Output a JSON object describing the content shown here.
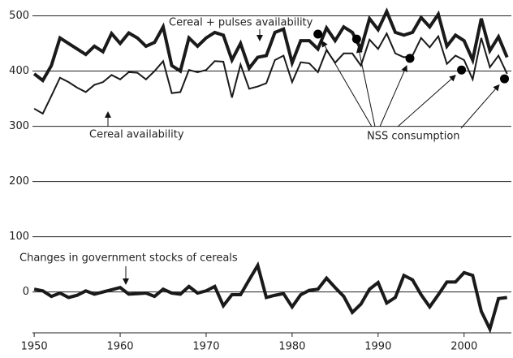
{
  "chart_data": {
    "type": "line",
    "x": [
      1950,
      1951,
      1952,
      1953,
      1954,
      1955,
      1956,
      1957,
      1958,
      1959,
      1960,
      1961,
      1962,
      1963,
      1964,
      1965,
      1966,
      1967,
      1968,
      1969,
      1970,
      1971,
      1972,
      1973,
      1974,
      1975,
      1976,
      1977,
      1978,
      1979,
      1980,
      1981,
      1982,
      1983,
      1984,
      1985,
      1986,
      1987,
      1988,
      1989,
      1990,
      1991,
      1992,
      1993,
      1994,
      1995,
      1996,
      1997,
      1998,
      1999,
      2000,
      2001,
      2002,
      2003,
      2004,
      2005
    ],
    "series": [
      {
        "name": "Cereal + pulses availability",
        "color": "#1a1a1a",
        "line_width": 4,
        "values": [
          395,
          383,
          410,
          460,
          450,
          440,
          430,
          445,
          435,
          468,
          450,
          469,
          460,
          445,
          452,
          480,
          410,
          400,
          460,
          445,
          460,
          470,
          465,
          420,
          450,
          405,
          425,
          428,
          470,
          476,
          415,
          455,
          455,
          440,
          478,
          455,
          480,
          470,
          440,
          495,
          475,
          508,
          470,
          465,
          470,
          497,
          480,
          503,
          445,
          465,
          455,
          420,
          495,
          437,
          462,
          425
        ]
      },
      {
        "name": "Cereal availability",
        "color": "#1a1a1a",
        "line_width": 2,
        "values": [
          332,
          323,
          355,
          388,
          380,
          370,
          362,
          375,
          380,
          393,
          385,
          398,
          397,
          385,
          400,
          418,
          360,
          362,
          402,
          398,
          402,
          418,
          417,
          352,
          412,
          368,
          372,
          378,
          420,
          428,
          380,
          416,
          414,
          398,
          438,
          415,
          432,
          432,
          410,
          457,
          440,
          468,
          432,
          425,
          428,
          460,
          443,
          463,
          413,
          428,
          420,
          385,
          460,
          407,
          428,
          395
        ]
      },
      {
        "name": "Changes in government stocks of cereals",
        "color": "#1a1a1a",
        "line_width": 4,
        "values": [
          5,
          2,
          -8,
          -2,
          -10,
          -6,
          2,
          -4,
          0,
          4,
          8,
          -4,
          -3,
          -2,
          -8,
          5,
          -2,
          -4,
          10,
          -2,
          2,
          10,
          -25,
          -5,
          -5,
          22,
          48,
          -10,
          -6,
          -3,
          -27,
          -5,
          3,
          5,
          25,
          8,
          -8,
          -37,
          -22,
          5,
          17,
          -20,
          -10,
          30,
          22,
          -5,
          -27,
          -5,
          18,
          18,
          35,
          30,
          -35,
          -67,
          -12,
          -10
        ]
      }
    ],
    "points": {
      "name": "NSS consumption",
      "color": "#000000",
      "x": [
        1983,
        1987.5,
        1993.7,
        1999.7,
        2004.7
      ],
      "values": [
        467,
        458,
        423,
        402,
        386
      ]
    },
    "xlim": [
      1949.8,
      2005.5
    ],
    "xticks": [
      1950,
      1960,
      1970,
      1980,
      1990,
      2000
    ],
    "ylim": [
      -74,
      514
    ],
    "yticks": [
      0,
      100,
      200,
      300,
      400,
      500
    ],
    "grid": true
  }
}
